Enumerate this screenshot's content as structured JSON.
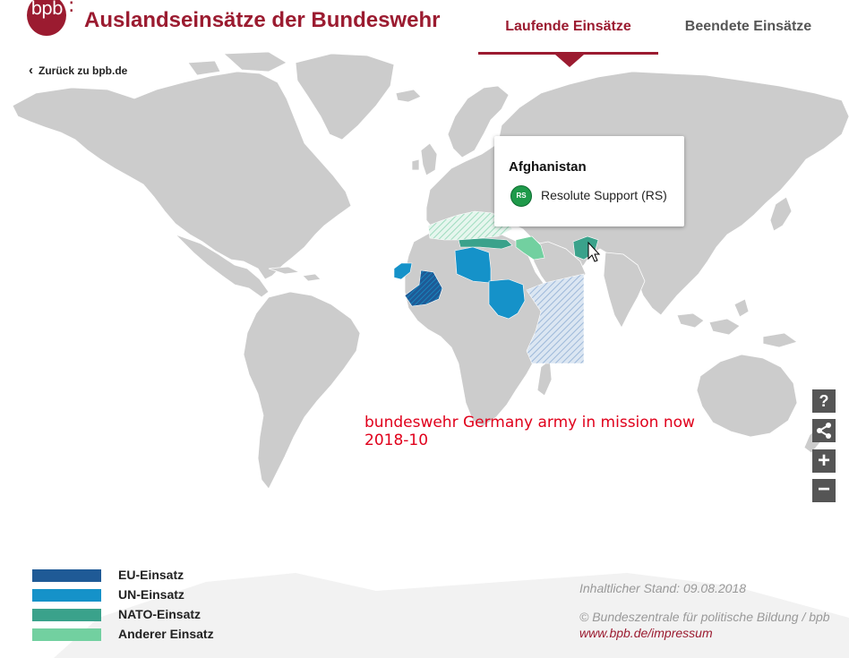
{
  "header": {
    "logo_text": "bpb",
    "logo_colon": ":",
    "title": "Auslandseinsätze der Bundeswehr",
    "tabs": [
      {
        "label": "Laufende Einsätze",
        "active": true
      },
      {
        "label": "Beendete Einsätze",
        "active": false
      }
    ]
  },
  "back_link": {
    "label": "Zurück zu bpb.de",
    "icon": "chevron-left-icon"
  },
  "tooltip": {
    "country": "Afghanistan",
    "missions": [
      {
        "badge": "RS",
        "label": "Resolute Support (RS)"
      }
    ]
  },
  "annotation": {
    "line1": "bundeswehr Germany army in mission now",
    "line2": "2018-10"
  },
  "tools": {
    "help": "?",
    "share_icon": "share-icon",
    "zoom_in": "+",
    "zoom_out": "−"
  },
  "legend": [
    {
      "label": "EU-Einsatz",
      "color": "#1f5a96"
    },
    {
      "label": "UN-Einsatz",
      "color": "#1592c9"
    },
    {
      "label": "NATO-Einsatz",
      "color": "#3aa28b"
    },
    {
      "label": "Anderer Einsatz",
      "color": "#72d0a0"
    }
  ],
  "footer": {
    "stand": "Inhaltlicher Stand: 09.08.2018",
    "copyright": "© Bundeszentrale für politische Bildung / bpb",
    "link": "www.bpb.de/impressum"
  },
  "colors": {
    "brand": "#9b1b30",
    "land": "#cccccc",
    "eu": "#1f5a96",
    "un": "#1592c9",
    "nato": "#3aa28b",
    "other": "#72d0a0",
    "hatch_other": "#b9cde6"
  }
}
